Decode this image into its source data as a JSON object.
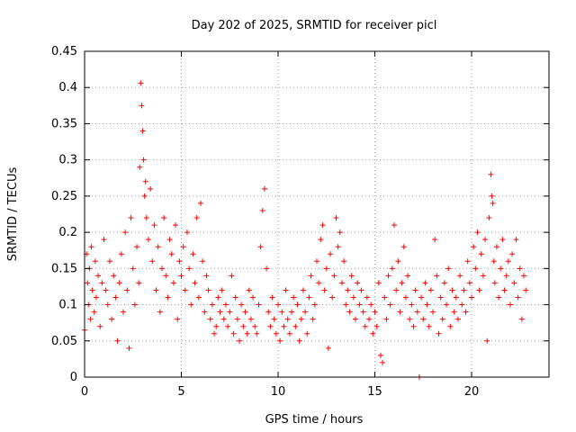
{
  "chart_data": {
    "type": "scatter",
    "title": "Day 202 of 2025, SRMTID for receiver picl",
    "xlabel": "GPS time / hours",
    "ylabel": "SRMTID / TECUs",
    "xlim": [
      0,
      24
    ],
    "ylim": [
      0,
      0.45
    ],
    "xticks": [
      0,
      5,
      10,
      15,
      20
    ],
    "yticks": [
      0,
      0.05,
      0.1,
      0.15,
      0.2,
      0.25,
      0.3,
      0.35,
      0.4,
      0.45
    ],
    "xtick_labels": [
      "0",
      "5",
      "10",
      "15",
      "20"
    ],
    "ytick_labels": [
      "0",
      "0.05",
      "0.1",
      "0.15",
      "0.2",
      "0.25",
      "0.3",
      "0.35",
      "0.4",
      "0.45"
    ],
    "grid": true,
    "marker": "+",
    "color": "#ff0000",
    "series": [
      {
        "x": [
          0.0,
          0.1,
          0.15,
          0.2,
          0.25,
          0.3,
          0.35,
          0.4,
          0.5,
          0.55,
          0.6,
          0.7,
          0.8,
          0.9,
          1.0,
          1.1,
          1.2,
          1.3,
          1.4,
          1.5,
          1.6,
          1.7,
          1.8,
          1.9,
          2.0,
          2.1,
          2.2,
          2.3,
          2.4,
          2.5,
          2.6,
          2.7,
          2.8,
          2.85,
          2.9,
          2.95,
          3.0,
          3.05,
          3.1,
          3.15,
          3.2,
          3.3,
          3.4,
          3.5,
          3.6,
          3.7,
          3.8,
          3.9,
          4.0,
          4.1,
          4.2,
          4.3,
          4.4,
          4.5,
          4.6,
          4.7,
          4.8,
          4.9,
          5.0,
          5.1,
          5.2,
          5.3,
          5.4,
          5.5,
          5.6,
          5.7,
          5.8,
          5.9,
          6.0,
          6.1,
          6.2,
          6.3,
          6.4,
          6.5,
          6.6,
          6.7,
          6.8,
          6.9,
          7.0,
          7.1,
          7.2,
          7.3,
          7.4,
          7.5,
          7.6,
          7.7,
          7.8,
          7.9,
          8.0,
          8.1,
          8.2,
          8.3,
          8.4,
          8.5,
          8.6,
          8.7,
          8.8,
          8.9,
          9.0,
          9.1,
          9.2,
          9.3,
          9.4,
          9.5,
          9.6,
          9.7,
          9.8,
          9.9,
          10.0,
          10.1,
          10.2,
          10.3,
          10.4,
          10.5,
          10.6,
          10.7,
          10.8,
          10.9,
          11.0,
          11.1,
          11.2,
          11.3,
          11.4,
          11.5,
          11.6,
          11.7,
          11.8,
          11.9,
          12.0,
          12.1,
          12.2,
          12.3,
          12.4,
          12.5,
          12.6,
          12.7,
          12.8,
          12.9,
          13.0,
          13.1,
          13.2,
          13.3,
          13.4,
          13.5,
          13.6,
          13.7,
          13.8,
          13.9,
          14.0,
          14.1,
          14.2,
          14.3,
          14.4,
          14.5,
          14.6,
          14.7,
          14.8,
          14.9,
          15.0,
          15.1,
          15.2,
          15.3,
          15.4,
          15.5,
          15.6,
          15.7,
          15.8,
          15.9,
          16.0,
          16.1,
          16.2,
          16.3,
          16.4,
          16.5,
          16.6,
          16.7,
          16.8,
          16.9,
          17.0,
          17.1,
          17.2,
          17.3,
          17.4,
          17.5,
          17.6,
          17.7,
          17.8,
          17.9,
          18.0,
          18.1,
          18.2,
          18.3,
          18.4,
          18.5,
          18.6,
          18.7,
          18.8,
          18.9,
          19.0,
          19.1,
          19.2,
          19.3,
          19.4,
          19.5,
          19.6,
          19.7,
          19.8,
          19.9,
          20.0,
          20.1,
          20.2,
          20.3,
          20.4,
          20.5,
          20.6,
          20.7,
          20.8,
          20.9,
          21.0,
          21.05,
          21.1,
          21.15,
          21.2,
          21.3,
          21.4,
          21.5,
          21.6,
          21.7,
          21.8,
          21.9,
          22.0,
          22.1,
          22.2,
          22.3,
          22.4,
          22.5,
          22.6,
          22.7,
          22.8
        ],
        "y": [
          0.065,
          0.17,
          0.13,
          0.1,
          0.15,
          0.08,
          0.18,
          0.12,
          0.09,
          0.16,
          0.11,
          0.14,
          0.07,
          0.13,
          0.19,
          0.12,
          0.1,
          0.16,
          0.08,
          0.14,
          0.11,
          0.05,
          0.13,
          0.17,
          0.09,
          0.2,
          0.12,
          0.04,
          0.22,
          0.15,
          0.1,
          0.18,
          0.13,
          0.29,
          0.406,
          0.375,
          0.34,
          0.3,
          0.25,
          0.27,
          0.22,
          0.19,
          0.26,
          0.16,
          0.21,
          0.12,
          0.18,
          0.09,
          0.15,
          0.22,
          0.14,
          0.11,
          0.19,
          0.17,
          0.13,
          0.21,
          0.08,
          0.16,
          0.14,
          0.18,
          0.12,
          0.2,
          0.15,
          0.1,
          0.17,
          0.13,
          0.22,
          0.11,
          0.24,
          0.16,
          0.09,
          0.14,
          0.12,
          0.08,
          0.1,
          0.06,
          0.07,
          0.11,
          0.09,
          0.12,
          0.08,
          0.1,
          0.07,
          0.09,
          0.14,
          0.06,
          0.11,
          0.08,
          0.05,
          0.1,
          0.07,
          0.09,
          0.06,
          0.12,
          0.08,
          0.11,
          0.07,
          0.06,
          0.1,
          0.18,
          0.23,
          0.26,
          0.15,
          0.09,
          0.07,
          0.11,
          0.08,
          0.06,
          0.1,
          0.05,
          0.09,
          0.07,
          0.12,
          0.08,
          0.06,
          0.09,
          0.11,
          0.07,
          0.1,
          0.05,
          0.08,
          0.12,
          0.09,
          0.06,
          0.11,
          0.14,
          0.08,
          0.1,
          0.16,
          0.13,
          0.19,
          0.21,
          0.12,
          0.15,
          0.04,
          0.17,
          0.11,
          0.14,
          0.22,
          0.18,
          0.2,
          0.13,
          0.16,
          0.1,
          0.12,
          0.09,
          0.14,
          0.11,
          0.08,
          0.13,
          0.1,
          0.12,
          0.09,
          0.07,
          0.11,
          0.08,
          0.1,
          0.06,
          0.09,
          0.07,
          0.13,
          0.03,
          0.02,
          0.11,
          0.08,
          0.14,
          0.1,
          0.15,
          0.21,
          0.12,
          0.16,
          0.09,
          0.13,
          0.18,
          0.11,
          0.14,
          0.08,
          0.1,
          0.07,
          0.12,
          0.09,
          0.0,
          0.11,
          0.08,
          0.13,
          0.1,
          0.07,
          0.12,
          0.09,
          0.19,
          0.14,
          0.06,
          0.11,
          0.08,
          0.13,
          0.1,
          0.15,
          0.07,
          0.12,
          0.09,
          0.11,
          0.08,
          0.14,
          0.1,
          0.12,
          0.09,
          0.16,
          0.13,
          0.11,
          0.18,
          0.15,
          0.2,
          0.12,
          0.17,
          0.14,
          0.19,
          0.05,
          0.22,
          0.28,
          0.25,
          0.24,
          0.16,
          0.13,
          0.18,
          0.11,
          0.15,
          0.19,
          0.12,
          0.14,
          0.16,
          0.1,
          0.17,
          0.13,
          0.19,
          0.11,
          0.15,
          0.08,
          0.14,
          0.12
        ]
      }
    ]
  }
}
